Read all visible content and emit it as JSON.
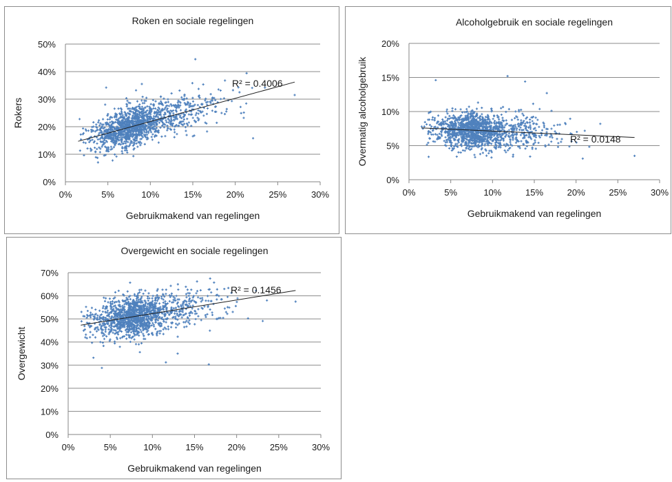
{
  "chart_data": [
    {
      "type": "scatter",
      "title": "Roken en sociale regelingen",
      "xlabel": "Gebruikmakend van regelingen",
      "ylabel": "Rokers",
      "xlim": [
        0,
        30
      ],
      "ylim": [
        0,
        50
      ],
      "x_ticks": [
        "0%",
        "5%",
        "10%",
        "15%",
        "20%",
        "25%",
        "30%"
      ],
      "y_ticks": [
        "0%",
        "10%",
        "20%",
        "30%",
        "40%",
        "50%"
      ],
      "grid": "horizontal",
      "marker_color": "#4f81bd",
      "trendline": {
        "x": [
          1.5,
          27
        ],
        "y": [
          14.7,
          36.2
        ],
        "label": "R² = 0.4006"
      },
      "cloud": {
        "count": 1400,
        "x_center": 7,
        "x_spread": 2.8,
        "y_intercept": 13.5,
        "y_slope": 0.85,
        "y_noise": 3.6,
        "seed": 11
      },
      "outliers": [
        [
          15.3,
          44.5
        ],
        [
          22.1,
          15.8
        ],
        [
          27,
          31.5
        ],
        [
          20.5,
          32.5
        ],
        [
          19.6,
          29.3
        ],
        [
          21.0,
          23.2
        ],
        [
          17.3,
          25.8
        ],
        [
          4.8,
          34.2
        ],
        [
          9.0,
          35.5
        ]
      ]
    },
    {
      "type": "scatter",
      "title": "Alcoholgebruik en sociale regelingen",
      "xlabel": "Gebruikmakend van regelingen",
      "ylabel": "Overmatig alcoholgebruik",
      "xlim": [
        0,
        30
      ],
      "ylim": [
        0,
        20
      ],
      "x_ticks": [
        "0%",
        "5%",
        "10%",
        "15%",
        "20%",
        "25%",
        "30%"
      ],
      "y_ticks": [
        "0%",
        "5%",
        "10%",
        "15%",
        "20%"
      ],
      "grid": "horizontal",
      "marker_color": "#4f81bd",
      "trendline": {
        "x": [
          1.5,
          27
        ],
        "y": [
          7.6,
          6.2
        ],
        "label": "R² = 0.0148"
      },
      "cloud": {
        "count": 1400,
        "x_center": 7,
        "x_spread": 2.8,
        "y_intercept": 7.6,
        "y_slope": -0.05,
        "y_noise": 1.3,
        "seed": 23
      },
      "outliers": [
        [
          11.8,
          15.2
        ],
        [
          13.9,
          14.4
        ],
        [
          16.5,
          12.7
        ],
        [
          27,
          3.5
        ],
        [
          20.8,
          3.1
        ],
        [
          22.9,
          8.2
        ],
        [
          3.2,
          14.6
        ],
        [
          14.5,
          3.4
        ]
      ]
    },
    {
      "type": "scatter",
      "title": "Overgewicht en sociale regelingen",
      "xlabel": "Gebruikmakend van regelingen",
      "ylabel": "Overgewicht",
      "xlim": [
        0,
        30
      ],
      "ylim": [
        0,
        70
      ],
      "x_ticks": [
        "0%",
        "5%",
        "10%",
        "15%",
        "20%",
        "25%",
        "30%"
      ],
      "y_ticks": [
        "0%",
        "10%",
        "20%",
        "30%",
        "40%",
        "50%",
        "60%",
        "70%"
      ],
      "grid": "horizontal",
      "marker_color": "#4f81bd",
      "trendline": {
        "x": [
          1.5,
          27
        ],
        "y": [
          47.3,
          62.3
        ],
        "label": "R² = 0.1456"
      },
      "cloud": {
        "count": 1400,
        "x_center": 7,
        "x_spread": 2.8,
        "y_intercept": 46.5,
        "y_slope": 0.58,
        "y_noise": 4.3,
        "seed": 37
      },
      "outliers": [
        [
          15.3,
          66.2
        ],
        [
          16.7,
          30.3
        ],
        [
          11.6,
          31.2
        ],
        [
          13.0,
          35.0
        ],
        [
          27,
          57.5
        ],
        [
          4.0,
          28.8
        ],
        [
          23.1,
          49.1
        ],
        [
          3.0,
          33.2
        ]
      ]
    }
  ]
}
